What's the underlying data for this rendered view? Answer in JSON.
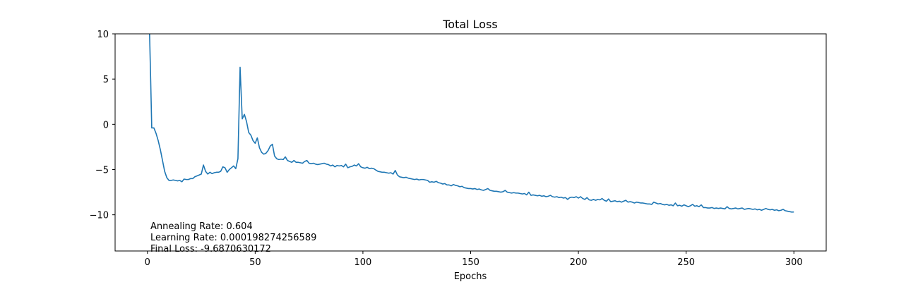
{
  "chart_data": {
    "type": "line",
    "title": "Total Loss",
    "xlabel": "Epochs",
    "ylabel": "",
    "xlim": [
      -15,
      315
    ],
    "ylim": [
      -14,
      10
    ],
    "xticks": [
      0,
      50,
      100,
      150,
      200,
      250,
      300
    ],
    "yticks": [
      10,
      5,
      0,
      -5,
      -10
    ],
    "grid": false,
    "line_color": "#1f77b4",
    "annotations": [
      "Annealing Rate: 0.604",
      "Learning Rate: 0.000198274256589",
      "Final Loss: -9.6870630172"
    ],
    "series": [
      {
        "points": [
          [
            1,
            10.0
          ],
          [
            1.5,
            5.0
          ],
          [
            2,
            -0.4
          ],
          [
            3,
            -0.4
          ],
          [
            4,
            -1.0
          ],
          [
            5,
            -1.8
          ],
          [
            6,
            -2.8
          ],
          [
            7,
            -4.0
          ],
          [
            8,
            -5.2
          ],
          [
            9,
            -5.9
          ],
          [
            10,
            -6.2
          ],
          [
            11,
            -6.2
          ],
          [
            12,
            -6.15
          ],
          [
            13,
            -6.2
          ],
          [
            14,
            -6.25
          ],
          [
            15,
            -6.2
          ],
          [
            16,
            -6.35
          ],
          [
            17,
            -6.05
          ],
          [
            18,
            -6.1
          ],
          [
            19,
            -6.1
          ],
          [
            20,
            -6.0
          ],
          [
            21,
            -6.0
          ],
          [
            22,
            -5.8
          ],
          [
            23,
            -5.7
          ],
          [
            24,
            -5.6
          ],
          [
            25,
            -5.5
          ],
          [
            26,
            -4.5
          ],
          [
            27,
            -5.2
          ],
          [
            28,
            -5.5
          ],
          [
            29,
            -5.3
          ],
          [
            30,
            -5.45
          ],
          [
            31,
            -5.35
          ],
          [
            32,
            -5.3
          ],
          [
            33,
            -5.3
          ],
          [
            34,
            -5.2
          ],
          [
            35,
            -4.7
          ],
          [
            36,
            -4.8
          ],
          [
            37,
            -5.3
          ],
          [
            38,
            -5.0
          ],
          [
            39,
            -4.8
          ],
          [
            40,
            -4.6
          ],
          [
            41,
            -4.9
          ],
          [
            42,
            -3.8
          ],
          [
            43,
            6.3
          ],
          [
            44,
            0.6
          ],
          [
            45,
            1.1
          ],
          [
            46,
            0.3
          ],
          [
            47,
            -0.9
          ],
          [
            48,
            -1.2
          ],
          [
            49,
            -1.8
          ],
          [
            50,
            -2.1
          ],
          [
            51,
            -1.5
          ],
          [
            52,
            -2.6
          ],
          [
            53,
            -3.1
          ],
          [
            54,
            -3.3
          ],
          [
            55,
            -3.2
          ],
          [
            56,
            -2.9
          ],
          [
            57,
            -2.4
          ],
          [
            58,
            -2.2
          ],
          [
            59,
            -3.5
          ],
          [
            60,
            -3.8
          ],
          [
            61,
            -3.9
          ],
          [
            62,
            -3.85
          ],
          [
            63,
            -3.9
          ],
          [
            64,
            -3.6
          ],
          [
            65,
            -4.0
          ],
          [
            66,
            -4.1
          ],
          [
            67,
            -4.2
          ],
          [
            68,
            -4.0
          ],
          [
            69,
            -4.2
          ],
          [
            70,
            -4.2
          ],
          [
            71,
            -4.25
          ],
          [
            72,
            -4.3
          ],
          [
            73,
            -4.1
          ],
          [
            74,
            -4.0
          ],
          [
            75,
            -4.3
          ],
          [
            76,
            -4.35
          ],
          [
            77,
            -4.3
          ],
          [
            78,
            -4.4
          ],
          [
            79,
            -4.45
          ],
          [
            80,
            -4.4
          ],
          [
            81,
            -4.35
          ],
          [
            82,
            -4.3
          ],
          [
            83,
            -4.4
          ],
          [
            84,
            -4.45
          ],
          [
            85,
            -4.6
          ],
          [
            86,
            -4.5
          ],
          [
            87,
            -4.7
          ],
          [
            88,
            -4.55
          ],
          [
            89,
            -4.6
          ],
          [
            90,
            -4.55
          ],
          [
            91,
            -4.7
          ],
          [
            92,
            -4.4
          ],
          [
            93,
            -4.8
          ],
          [
            94,
            -4.7
          ],
          [
            95,
            -4.65
          ],
          [
            96,
            -4.5
          ],
          [
            97,
            -4.6
          ],
          [
            98,
            -4.35
          ],
          [
            99,
            -4.7
          ],
          [
            100,
            -4.8
          ],
          [
            101,
            -4.85
          ],
          [
            102,
            -4.75
          ],
          [
            103,
            -4.9
          ],
          [
            104,
            -4.85
          ],
          [
            105,
            -4.9
          ],
          [
            106,
            -5.05
          ],
          [
            107,
            -5.2
          ],
          [
            108,
            -5.25
          ],
          [
            109,
            -5.3
          ],
          [
            110,
            -5.3
          ],
          [
            111,
            -5.35
          ],
          [
            112,
            -5.4
          ],
          [
            113,
            -5.35
          ],
          [
            114,
            -5.5
          ],
          [
            115,
            -5.1
          ],
          [
            116,
            -5.6
          ],
          [
            117,
            -5.8
          ],
          [
            118,
            -5.85
          ],
          [
            119,
            -5.9
          ],
          [
            120,
            -5.85
          ],
          [
            121,
            -5.95
          ],
          [
            122,
            -6.0
          ],
          [
            123,
            -6.05
          ],
          [
            124,
            -6.1
          ],
          [
            125,
            -6.05
          ],
          [
            126,
            -6.15
          ],
          [
            127,
            -6.1
          ],
          [
            128,
            -6.1
          ],
          [
            129,
            -6.15
          ],
          [
            130,
            -6.2
          ],
          [
            131,
            -6.4
          ],
          [
            132,
            -6.35
          ],
          [
            133,
            -6.4
          ],
          [
            134,
            -6.3
          ],
          [
            135,
            -6.45
          ],
          [
            136,
            -6.5
          ],
          [
            137,
            -6.6
          ],
          [
            138,
            -6.55
          ],
          [
            139,
            -6.7
          ],
          [
            140,
            -6.7
          ],
          [
            141,
            -6.8
          ],
          [
            142,
            -6.65
          ],
          [
            143,
            -6.75
          ],
          [
            144,
            -6.8
          ],
          [
            145,
            -6.9
          ],
          [
            146,
            -6.85
          ],
          [
            147,
            -7.0
          ],
          [
            148,
            -7.05
          ],
          [
            149,
            -7.1
          ],
          [
            150,
            -7.1
          ],
          [
            151,
            -7.15
          ],
          [
            152,
            -7.1
          ],
          [
            153,
            -7.2
          ],
          [
            154,
            -7.15
          ],
          [
            155,
            -7.25
          ],
          [
            156,
            -7.3
          ],
          [
            157,
            -7.2
          ],
          [
            158,
            -7.1
          ],
          [
            159,
            -7.3
          ],
          [
            160,
            -7.35
          ],
          [
            161,
            -7.4
          ],
          [
            162,
            -7.4
          ],
          [
            163,
            -7.45
          ],
          [
            164,
            -7.5
          ],
          [
            165,
            -7.45
          ],
          [
            166,
            -7.3
          ],
          [
            167,
            -7.5
          ],
          [
            168,
            -7.55
          ],
          [
            169,
            -7.6
          ],
          [
            170,
            -7.55
          ],
          [
            171,
            -7.6
          ],
          [
            172,
            -7.6
          ],
          [
            173,
            -7.65
          ],
          [
            174,
            -7.7
          ],
          [
            175,
            -7.65
          ],
          [
            176,
            -7.8
          ],
          [
            177,
            -7.5
          ],
          [
            178,
            -7.85
          ],
          [
            179,
            -7.8
          ],
          [
            180,
            -7.85
          ],
          [
            181,
            -7.9
          ],
          [
            182,
            -7.85
          ],
          [
            183,
            -7.95
          ],
          [
            184,
            -7.9
          ],
          [
            185,
            -8.0
          ],
          [
            186,
            -7.95
          ],
          [
            187,
            -7.85
          ],
          [
            188,
            -8.0
          ],
          [
            189,
            -8.05
          ],
          [
            190,
            -8.0
          ],
          [
            191,
            -8.1
          ],
          [
            192,
            -8.05
          ],
          [
            193,
            -8.15
          ],
          [
            194,
            -8.1
          ],
          [
            195,
            -8.3
          ],
          [
            196,
            -8.1
          ],
          [
            197,
            -8.05
          ],
          [
            198,
            -8.1
          ],
          [
            199,
            -8.0
          ],
          [
            200,
            -8.15
          ],
          [
            201,
            -8.0
          ],
          [
            202,
            -8.2
          ],
          [
            203,
            -8.3
          ],
          [
            204,
            -8.1
          ],
          [
            205,
            -8.35
          ],
          [
            206,
            -8.4
          ],
          [
            207,
            -8.3
          ],
          [
            208,
            -8.4
          ],
          [
            209,
            -8.3
          ],
          [
            210,
            -8.35
          ],
          [
            211,
            -8.2
          ],
          [
            212,
            -8.4
          ],
          [
            213,
            -8.5
          ],
          [
            214,
            -8.25
          ],
          [
            215,
            -8.55
          ],
          [
            216,
            -8.5
          ],
          [
            217,
            -8.45
          ],
          [
            218,
            -8.55
          ],
          [
            219,
            -8.5
          ],
          [
            220,
            -8.6
          ],
          [
            221,
            -8.5
          ],
          [
            222,
            -8.4
          ],
          [
            223,
            -8.6
          ],
          [
            224,
            -8.55
          ],
          [
            225,
            -8.6
          ],
          [
            226,
            -8.7
          ],
          [
            227,
            -8.6
          ],
          [
            228,
            -8.65
          ],
          [
            229,
            -8.7
          ],
          [
            230,
            -8.7
          ],
          [
            231,
            -8.75
          ],
          [
            232,
            -8.8
          ],
          [
            233,
            -8.8
          ],
          [
            234,
            -8.85
          ],
          [
            235,
            -8.6
          ],
          [
            236,
            -8.7
          ],
          [
            237,
            -8.8
          ],
          [
            238,
            -8.75
          ],
          [
            239,
            -8.85
          ],
          [
            240,
            -8.9
          ],
          [
            241,
            -8.85
          ],
          [
            242,
            -8.95
          ],
          [
            243,
            -8.9
          ],
          [
            244,
            -9.0
          ],
          [
            245,
            -8.7
          ],
          [
            246,
            -9.0
          ],
          [
            247,
            -8.95
          ],
          [
            248,
            -9.05
          ],
          [
            249,
            -8.9
          ],
          [
            250,
            -9.0
          ],
          [
            251,
            -9.1
          ],
          [
            252,
            -9.0
          ],
          [
            253,
            -8.85
          ],
          [
            254,
            -9.05
          ],
          [
            255,
            -9.0
          ],
          [
            256,
            -9.1
          ],
          [
            257,
            -8.9
          ],
          [
            258,
            -9.2
          ],
          [
            259,
            -9.2
          ],
          [
            260,
            -9.25
          ],
          [
            261,
            -9.25
          ],
          [
            262,
            -9.2
          ],
          [
            263,
            -9.3
          ],
          [
            264,
            -9.25
          ],
          [
            265,
            -9.3
          ],
          [
            266,
            -9.25
          ],
          [
            267,
            -9.3
          ],
          [
            268,
            -9.35
          ],
          [
            269,
            -9.1
          ],
          [
            270,
            -9.3
          ],
          [
            271,
            -9.35
          ],
          [
            272,
            -9.3
          ],
          [
            273,
            -9.25
          ],
          [
            274,
            -9.35
          ],
          [
            275,
            -9.3
          ],
          [
            276,
            -9.25
          ],
          [
            277,
            -9.4
          ],
          [
            278,
            -9.35
          ],
          [
            279,
            -9.3
          ],
          [
            280,
            -9.35
          ],
          [
            281,
            -9.4
          ],
          [
            282,
            -9.35
          ],
          [
            283,
            -9.45
          ],
          [
            284,
            -9.4
          ],
          [
            285,
            -9.5
          ],
          [
            286,
            -9.4
          ],
          [
            287,
            -9.3
          ],
          [
            288,
            -9.4
          ],
          [
            289,
            -9.45
          ],
          [
            290,
            -9.4
          ],
          [
            291,
            -9.5
          ],
          [
            292,
            -9.45
          ],
          [
            293,
            -9.55
          ],
          [
            294,
            -9.5
          ],
          [
            295,
            -9.4
          ],
          [
            296,
            -9.55
          ],
          [
            297,
            -9.6
          ],
          [
            298,
            -9.65
          ],
          [
            299,
            -9.7
          ],
          [
            300,
            -9.69
          ]
        ]
      }
    ]
  }
}
